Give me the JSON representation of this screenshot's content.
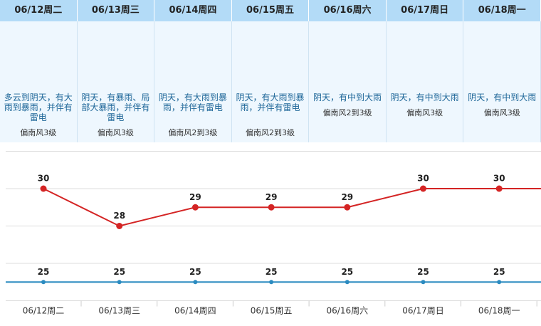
{
  "forecast": [
    {
      "desc": "多云到阴天，有大雨到暴雨，并伴有雷电",
      "wind": "偏南风3级"
    },
    {
      "desc": "阴天，有暴雨、局部大暴雨，并伴有雷电",
      "wind": "偏南风3级"
    },
    {
      "desc": "阴天，有大雨到暴雨，并伴有雷电",
      "wind": "偏南风2到3级"
    },
    {
      "desc": "阴天，有大雨到暴雨，并伴有雷电",
      "wind": "偏南风2到3级"
    },
    {
      "desc": "阴天，有中到大雨",
      "wind": "偏南风2到3级"
    },
    {
      "desc": "阴天，有中到大雨",
      "wind": "偏南风3级"
    },
    {
      "desc": "阴天，有中到大雨",
      "wind": "偏南风3级"
    }
  ],
  "chart_data": {
    "type": "line",
    "categories": [
      "06/12周二",
      "06/13周三",
      "06/14周四",
      "06/15周五",
      "06/16周六",
      "06/17周日",
      "06/18周一"
    ],
    "series": [
      {
        "color": "#d42424",
        "values": [
          30,
          28,
          29,
          29,
          29,
          30,
          30
        ]
      },
      {
        "color": "#2b8bc0",
        "values": [
          25,
          25,
          25,
          25,
          25,
          25,
          25
        ]
      }
    ],
    "ylim": [
      24,
      32
    ],
    "yticks": [
      24,
      26,
      28,
      30,
      32
    ],
    "grid": true
  }
}
